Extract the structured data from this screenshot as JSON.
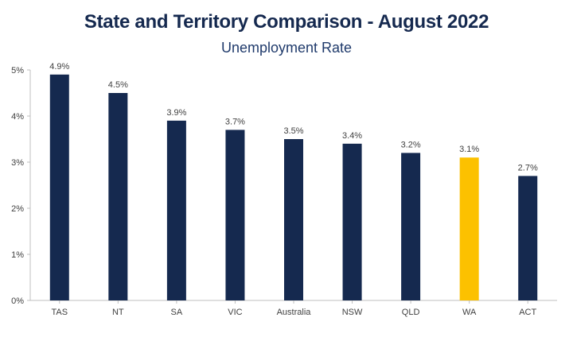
{
  "chart_data": {
    "type": "bar",
    "title": "State and Territory Comparison - August 2022",
    "subtitle": "Unemployment Rate",
    "categories": [
      "TAS",
      "NT",
      "SA",
      "VIC",
      "Australia",
      "NSW",
      "QLD",
      "WA",
      "ACT"
    ],
    "values": [
      4.9,
      4.5,
      3.9,
      3.7,
      3.5,
      3.4,
      3.2,
      3.1,
      2.7
    ],
    "data_labels": [
      "4.9%",
      "4.5%",
      "3.9%",
      "3.7%",
      "3.5%",
      "3.4%",
      "3.2%",
      "3.1%",
      "2.7%"
    ],
    "yticks": [
      0,
      1,
      2,
      3,
      4,
      5
    ],
    "ytick_labels": [
      "0%",
      "1%",
      "2%",
      "3%",
      "4%",
      "5%"
    ],
    "ylim": [
      0,
      5
    ],
    "xlabel": "",
    "ylabel": "",
    "grid": false,
    "colors": {
      "default_bar": "#15294f",
      "highlight_bar": "#fcc100",
      "highlight_category": "WA",
      "axis": "#bfbfbf"
    }
  }
}
